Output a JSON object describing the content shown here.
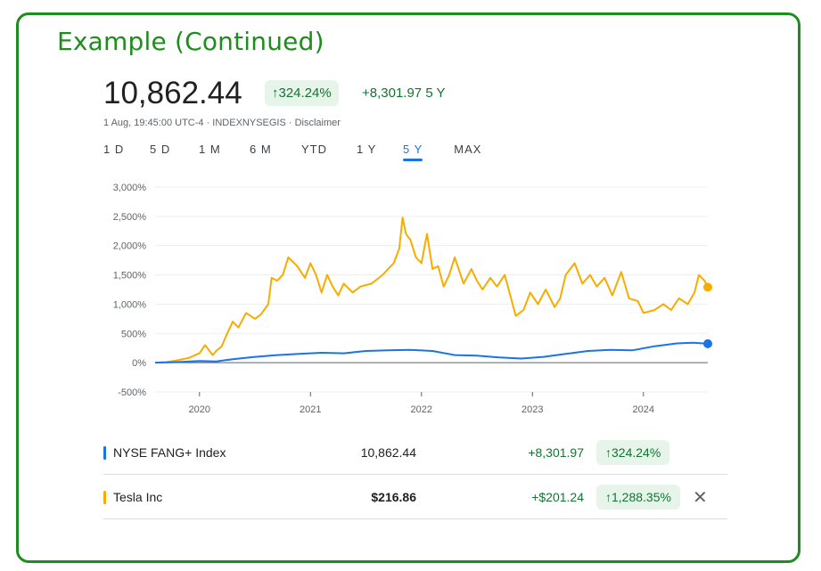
{
  "slide": {
    "title": "Example (Continued)"
  },
  "header": {
    "price": "10,862.44",
    "pct_change": "↑324.24%",
    "abs_change": "+8,301.97 5 Y",
    "subtitle": "1 Aug, 19:45:00 UTC-4 · INDEXNYSEGIS · Disclaimer"
  },
  "tabs": [
    {
      "label": "1 D"
    },
    {
      "label": "5 D"
    },
    {
      "label": "1 M"
    },
    {
      "label": "6 M"
    },
    {
      "label": "YTD"
    },
    {
      "label": "1 Y"
    },
    {
      "label": "5 Y",
      "active": true
    },
    {
      "label": "MAX"
    }
  ],
  "chart_data": {
    "type": "line",
    "ylim": [
      -500,
      3000
    ],
    "y_ticks": [
      3000,
      2500,
      2000,
      1500,
      1000,
      500,
      0,
      -500
    ],
    "y_tick_labels": [
      "3,000%",
      "2,500%",
      "2,000%",
      "1,500%",
      "1,000%",
      "500%",
      "0%",
      "-500%"
    ],
    "x_ticks": [
      2020,
      2021,
      2022,
      2023,
      2024
    ],
    "x_tick_labels": [
      "2020",
      "2021",
      "2022",
      "2023",
      "2024"
    ],
    "xlim": [
      2019.6,
      2024.58
    ],
    "grid": true,
    "series": [
      {
        "name": "Tesla Inc",
        "color": "#f9ab00",
        "x": [
          2019.6,
          2019.7,
          2019.8,
          2019.9,
          2020.0,
          2020.05,
          2020.12,
          2020.15,
          2020.2,
          2020.25,
          2020.3,
          2020.35,
          2020.42,
          2020.5,
          2020.55,
          2020.62,
          2020.65,
          2020.7,
          2020.75,
          2020.8,
          2020.88,
          2020.95,
          2021.0,
          2021.05,
          2021.1,
          2021.15,
          2021.2,
          2021.25,
          2021.3,
          2021.38,
          2021.45,
          2021.55,
          2021.65,
          2021.75,
          2021.8,
          2021.83,
          2021.86,
          2021.9,
          2021.95,
          2022.0,
          2022.05,
          2022.1,
          2022.15,
          2022.2,
          2022.25,
          2022.3,
          2022.38,
          2022.45,
          2022.5,
          2022.55,
          2022.62,
          2022.68,
          2022.75,
          2022.85,
          2022.92,
          2022.98,
          2023.05,
          2023.12,
          2023.2,
          2023.25,
          2023.3,
          2023.38,
          2023.45,
          2023.52,
          2023.58,
          2023.65,
          2023.72,
          2023.8,
          2023.87,
          2023.95,
          2024.0,
          2024.1,
          2024.18,
          2024.25,
          2024.32,
          2024.4,
          2024.46,
          2024.5,
          2024.55,
          2024.58
        ],
        "values": [
          0,
          10,
          40,
          80,
          160,
          300,
          130,
          200,
          280,
          500,
          700,
          600,
          850,
          750,
          820,
          1000,
          1450,
          1400,
          1500,
          1800,
          1650,
          1450,
          1700,
          1500,
          1200,
          1500,
          1300,
          1150,
          1350,
          1200,
          1300,
          1350,
          1500,
          1700,
          1950,
          2480,
          2200,
          2100,
          1800,
          1700,
          2200,
          1600,
          1650,
          1300,
          1500,
          1800,
          1350,
          1600,
          1400,
          1250,
          1450,
          1300,
          1500,
          800,
          900,
          1200,
          1000,
          1250,
          950,
          1100,
          1500,
          1700,
          1350,
          1500,
          1300,
          1450,
          1150,
          1550,
          1100,
          1050,
          850,
          900,
          1000,
          900,
          1100,
          1000,
          1200,
          1500,
          1400,
          1290
        ]
      },
      {
        "name": "NYSE FANG+ Index",
        "color": "#1a73e8",
        "x": [
          2019.6,
          2019.8,
          2020.0,
          2020.15,
          2020.3,
          2020.5,
          2020.7,
          2020.9,
          2021.1,
          2021.3,
          2021.5,
          2021.7,
          2021.9,
          2022.1,
          2022.3,
          2022.5,
          2022.7,
          2022.9,
          2023.1,
          2023.3,
          2023.5,
          2023.7,
          2023.9,
          2024.1,
          2024.3,
          2024.45,
          2024.58
        ],
        "values": [
          0,
          10,
          30,
          20,
          60,
          100,
          130,
          150,
          170,
          160,
          200,
          210,
          220,
          200,
          130,
          120,
          90,
          70,
          100,
          150,
          200,
          220,
          210,
          280,
          330,
          340,
          324
        ]
      }
    ]
  },
  "table": {
    "rows": [
      {
        "name": "NYSE FANG+ Index",
        "value": "10,862.44",
        "change": "+8,301.97",
        "pct": "↑324.24%",
        "color": "#1a73e8"
      },
      {
        "name": "Tesla Inc",
        "value": "$216.86",
        "change": "+$201.24",
        "pct": "↑1,288.35%",
        "color": "#f9ab00",
        "close": "✕"
      }
    ]
  }
}
